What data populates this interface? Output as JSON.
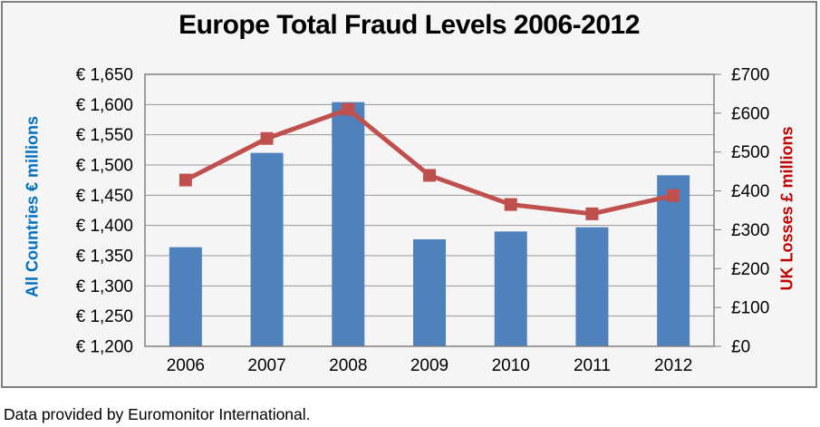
{
  "title": "Europe Total Fraud Levels 2006-2012",
  "footer": "Data provided by Euromonitor International.",
  "chart_data": {
    "type": "bar",
    "subtype": "bar-and-line-dual-axis",
    "title": "Europe Total Fraud Levels 2006-2012",
    "categories": [
      "2006",
      "2007",
      "2008",
      "2009",
      "2010",
      "2011",
      "2012"
    ],
    "series": [
      {
        "name": "All Countries € millions",
        "type": "bar",
        "axis": "left",
        "color": "#4F81BD",
        "values": [
          1364,
          1520,
          1604,
          1377,
          1390,
          1397,
          1483
        ]
      },
      {
        "name": "UK Losses £ millions",
        "type": "line",
        "axis": "right",
        "color": "#C0504D",
        "values": [
          428,
          535,
          610,
          440,
          365,
          341,
          388
        ]
      }
    ],
    "left_axis": {
      "title": "All Countries € millions",
      "color": "#0070C0",
      "min": 1200,
      "max": 1650,
      "step": 50,
      "tick_labels": [
        "€ 1,650",
        "€ 1,600",
        "€ 1,550",
        "€ 1,500",
        "€ 1,450",
        "€ 1,400",
        "€ 1,350",
        "€ 1,300",
        "€ 1,250",
        "€ 1,200"
      ]
    },
    "right_axis": {
      "title": "UK Losses £ millions",
      "color": "#C00000",
      "min": 0,
      "max": 700,
      "step": 100,
      "tick_labels": [
        "£700",
        "£600",
        "£500",
        "£400",
        "£300",
        "£200",
        "£100",
        "£0"
      ]
    },
    "grid": true,
    "legend_position": "none",
    "gridline_color": "#969696",
    "plot_border_color": "#808080"
  }
}
